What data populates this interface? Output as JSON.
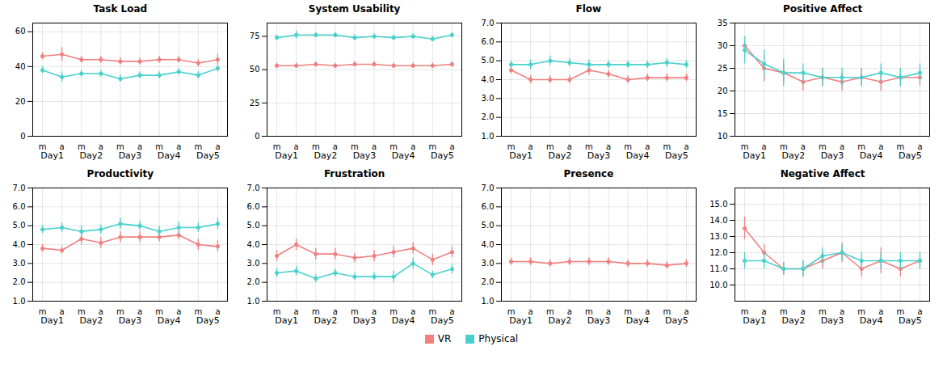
{
  "chart_data": [
    {
      "type": "line",
      "title": "Task Load",
      "marker": "circle",
      "grid": true,
      "legend": "bottom",
      "categories": [
        "m",
        "a",
        "m",
        "a",
        "m",
        "a",
        "m",
        "a",
        "m",
        "a"
      ],
      "annotations": [
        "Day1",
        "Day2",
        "Day3",
        "Day4",
        "Day5"
      ],
      "ylim": [
        0,
        65
      ],
      "yticks": [
        0,
        20,
        40,
        60
      ],
      "series": [
        {
          "name": "VR",
          "color": "#F08080",
          "values": [
            46,
            47,
            44,
            44,
            43,
            43,
            44,
            44,
            42,
            44
          ],
          "errors": [
            2,
            4,
            2,
            2,
            2,
            2,
            2,
            2,
            2,
            3
          ]
        },
        {
          "name": "Physical",
          "color": "#48D1CC",
          "values": [
            38,
            34,
            36,
            36,
            33,
            35,
            35,
            37,
            35,
            39
          ],
          "errors": [
            2,
            3,
            2,
            2,
            2,
            2,
            2,
            2,
            2,
            2
          ]
        }
      ]
    },
    {
      "type": "line",
      "title": "System Usability",
      "marker": "circle",
      "grid": true,
      "legend": "bottom",
      "categories": [
        "m",
        "a",
        "m",
        "a",
        "m",
        "a",
        "m",
        "a",
        "m",
        "a"
      ],
      "annotations": [
        "Day1",
        "Day2",
        "Day3",
        "Day4",
        "Day5"
      ],
      "ylim": [
        0,
        85
      ],
      "yticks": [
        0,
        25,
        50,
        75
      ],
      "series": [
        {
          "name": "VR",
          "color": "#F08080",
          "values": [
            53,
            53,
            54,
            53,
            54,
            54,
            53,
            53,
            53,
            54
          ],
          "errors": [
            2,
            2,
            2,
            2,
            2,
            2,
            2,
            2,
            2,
            2
          ]
        },
        {
          "name": "Physical",
          "color": "#48D1CC",
          "values": [
            74,
            76,
            76,
            76,
            74,
            75,
            74,
            75,
            73,
            76
          ],
          "errors": [
            2,
            3,
            2,
            2,
            2,
            2,
            2,
            2,
            2,
            2
          ]
        }
      ]
    },
    {
      "type": "line",
      "title": "Flow",
      "marker": "circle",
      "grid": true,
      "legend": "bottom",
      "categories": [
        "m",
        "a",
        "m",
        "a",
        "m",
        "a",
        "m",
        "a",
        "m",
        "a"
      ],
      "annotations": [
        "Day1",
        "Day2",
        "Day3",
        "Day4",
        "Day5"
      ],
      "ylim": [
        1,
        7
      ],
      "yticks": [
        1,
        2,
        3,
        4,
        5,
        6,
        7
      ],
      "series": [
        {
          "name": "VR",
          "color": "#F08080",
          "values": [
            4.5,
            4.0,
            4.0,
            4.0,
            4.5,
            4.3,
            4.0,
            4.1,
            4.1,
            4.1
          ],
          "errors": [
            0.2,
            0.2,
            0.2,
            0.2,
            0.25,
            0.2,
            0.2,
            0.2,
            0.2,
            0.2
          ]
        },
        {
          "name": "Physical",
          "color": "#48D1CC",
          "values": [
            4.8,
            4.8,
            5.0,
            4.9,
            4.8,
            4.8,
            4.8,
            4.8,
            4.9,
            4.8
          ],
          "errors": [
            0.2,
            0.25,
            0.25,
            0.2,
            0.25,
            0.2,
            0.2,
            0.2,
            0.25,
            0.2
          ]
        }
      ]
    },
    {
      "type": "line",
      "title": "Positive Affect",
      "marker": "circle",
      "grid": true,
      "legend": "bottom",
      "categories": [
        "m",
        "a",
        "m",
        "a",
        "m",
        "a",
        "m",
        "a",
        "m",
        "a"
      ],
      "annotations": [
        "Day1",
        "Day2",
        "Day3",
        "Day4",
        "Day5"
      ],
      "ylim": [
        10,
        35
      ],
      "yticks": [
        10,
        15,
        20,
        25,
        30,
        35
      ],
      "series": [
        {
          "name": "VR",
          "color": "#F08080",
          "values": [
            30,
            25,
            24,
            22,
            23,
            22,
            23,
            22,
            23,
            23
          ],
          "errors": [
            2,
            3,
            2,
            2,
            2,
            2,
            2,
            2,
            2,
            2
          ]
        },
        {
          "name": "Physical",
          "color": "#48D1CC",
          "values": [
            29,
            26,
            24,
            24,
            23,
            23,
            23,
            24,
            23,
            24
          ],
          "errors": [
            3,
            3,
            3,
            2,
            2,
            2,
            2,
            2,
            2,
            2
          ]
        }
      ]
    },
    {
      "type": "line",
      "title": "Productivity",
      "marker": "circle",
      "grid": true,
      "legend": "bottom",
      "categories": [
        "m",
        "a",
        "m",
        "a",
        "m",
        "a",
        "m",
        "a",
        "m",
        "a"
      ],
      "annotations": [
        "Day1",
        "Day2",
        "Day3",
        "Day4",
        "Day5"
      ],
      "ylim": [
        1,
        7
      ],
      "yticks": [
        1,
        2,
        3,
        4,
        5,
        6,
        7
      ],
      "series": [
        {
          "name": "VR",
          "color": "#F08080",
          "values": [
            3.8,
            3.7,
            4.3,
            4.1,
            4.4,
            4.4,
            4.4,
            4.5,
            4.0,
            3.9
          ],
          "errors": [
            0.2,
            0.2,
            0.3,
            0.3,
            0.3,
            0.3,
            0.25,
            0.25,
            0.3,
            0.3
          ]
        },
        {
          "name": "Physical",
          "color": "#48D1CC",
          "values": [
            4.8,
            4.9,
            4.7,
            4.8,
            5.1,
            5.0,
            4.7,
            4.9,
            4.9,
            5.1
          ],
          "errors": [
            0.2,
            0.25,
            0.3,
            0.25,
            0.3,
            0.25,
            0.25,
            0.3,
            0.25,
            0.3
          ]
        }
      ]
    },
    {
      "type": "line",
      "title": "Frustration",
      "marker": "circle",
      "grid": true,
      "legend": "bottom",
      "categories": [
        "m",
        "a",
        "m",
        "a",
        "m",
        "a",
        "m",
        "a",
        "m",
        "a"
      ],
      "annotations": [
        "Day1",
        "Day2",
        "Day3",
        "Day4",
        "Day5"
      ],
      "ylim": [
        1,
        7
      ],
      "yticks": [
        1,
        2,
        3,
        4,
        5,
        6,
        7
      ],
      "series": [
        {
          "name": "VR",
          "color": "#F08080",
          "values": [
            3.4,
            4.0,
            3.5,
            3.5,
            3.3,
            3.4,
            3.6,
            3.8,
            3.2,
            3.6
          ],
          "errors": [
            0.3,
            0.3,
            0.3,
            0.3,
            0.25,
            0.3,
            0.3,
            0.3,
            0.3,
            0.3
          ]
        },
        {
          "name": "Physical",
          "color": "#48D1CC",
          "values": [
            2.5,
            2.6,
            2.2,
            2.5,
            2.3,
            2.3,
            2.3,
            3.0,
            2.4,
            2.7
          ],
          "errors": [
            0.25,
            0.25,
            0.2,
            0.2,
            0.2,
            0.2,
            0.3,
            0.3,
            0.2,
            0.25
          ]
        }
      ]
    },
    {
      "type": "line",
      "title": "Presence",
      "marker": "circle",
      "grid": true,
      "legend": "bottom",
      "categories": [
        "m",
        "a",
        "m",
        "a",
        "m",
        "a",
        "m",
        "a",
        "m",
        "a"
      ],
      "annotations": [
        "Day1",
        "Day2",
        "Day3",
        "Day4",
        "Day5"
      ],
      "ylim": [
        1,
        7
      ],
      "yticks": [
        1,
        2,
        3,
        4,
        5,
        6,
        7
      ],
      "series": [
        {
          "name": "VR",
          "color": "#F08080",
          "values": [
            3.1,
            3.1,
            3.0,
            3.1,
            3.1,
            3.1,
            3.0,
            3.0,
            2.9,
            3.0
          ],
          "errors": [
            0.2,
            0.2,
            0.2,
            0.2,
            0.2,
            0.2,
            0.2,
            0.2,
            0.2,
            0.2
          ]
        }
      ]
    },
    {
      "type": "line",
      "title": "Negative Affect",
      "marker": "circle",
      "grid": true,
      "legend": "bottom",
      "categories": [
        "m",
        "a",
        "m",
        "a",
        "m",
        "a",
        "m",
        "a",
        "m",
        "a"
      ],
      "annotations": [
        "Day1",
        "Day2",
        "Day3",
        "Day4",
        "Day5"
      ],
      "ylim": [
        9,
        16
      ],
      "yticks": [
        10,
        11,
        12,
        13,
        14,
        15
      ],
      "series": [
        {
          "name": "VR",
          "color": "#F08080",
          "values": [
            13.5,
            12.0,
            11.0,
            11.0,
            11.5,
            12.0,
            11.0,
            11.5,
            11.0,
            11.5
          ],
          "errors": [
            0.7,
            0.5,
            0.4,
            0.5,
            0.5,
            0.6,
            0.5,
            0.8,
            0.5,
            0.5
          ]
        },
        {
          "name": "Physical",
          "color": "#48D1CC",
          "values": [
            11.5,
            11.5,
            11.0,
            11.0,
            11.8,
            12.0,
            11.5,
            11.5,
            11.5,
            11.5
          ],
          "errors": [
            0.5,
            0.5,
            0.4,
            0.5,
            0.5,
            0.5,
            0.5,
            0.5,
            0.5,
            0.5
          ]
        }
      ]
    }
  ]
}
